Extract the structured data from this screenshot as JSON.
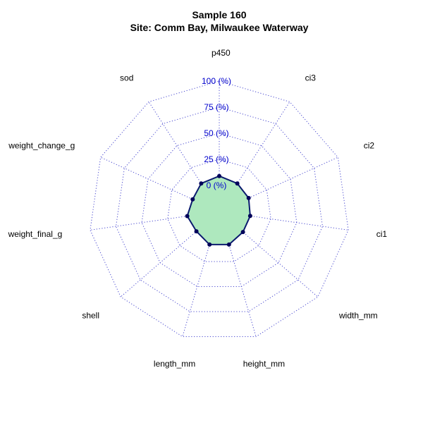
{
  "chart_data": {
    "type": "radar",
    "title": "Sample 160",
    "subtitle": "Site: Comm Bay, Milwaukee Waterway",
    "axes": [
      "p450",
      "ci3",
      "ci2",
      "ci1",
      "width_mm",
      "height_mm",
      "length_mm",
      "shell",
      "weight_final_g",
      "weight_change_g",
      "sod"
    ],
    "radial_ticks": [
      "0 (%)",
      "25 (%)",
      "50 (%)",
      "75 (%)",
      "100 (%)"
    ],
    "rlim": [
      -25,
      100
    ],
    "series": [
      {
        "values": [
          9,
          7,
          6,
          5,
          5,
          8,
          8,
          4,
          6,
          3,
          7
        ]
      }
    ],
    "colors": {
      "fill": "#aee8be",
      "line": "#0a1a6e",
      "point": "#00005a",
      "grid": "#4a4ad0"
    },
    "grid": true
  }
}
